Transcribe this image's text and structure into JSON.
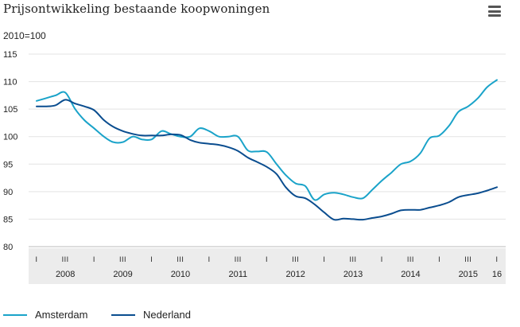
{
  "header": {
    "title": "Prijsontwikkeling bestaande koopwoningen",
    "menu_icon": "hamburger-menu-icon"
  },
  "chart_data": {
    "type": "line",
    "title": "Prijsontwikkeling bestaande koopwoningen",
    "ylabel": "2010=100",
    "ylim": [
      80,
      115
    ],
    "yticks": [
      80,
      85,
      90,
      95,
      100,
      105,
      110,
      115
    ],
    "x_range": [
      2008.0,
      2016.0
    ],
    "quarter_ticks": [
      {
        "x": 2008.0,
        "label": "I"
      },
      {
        "x": 2008.5,
        "label": "III"
      },
      {
        "x": 2009.0,
        "label": "I"
      },
      {
        "x": 2009.5,
        "label": "III"
      },
      {
        "x": 2010.0,
        "label": "I"
      },
      {
        "x": 2010.5,
        "label": "III"
      },
      {
        "x": 2011.0,
        "label": "I"
      },
      {
        "x": 2011.5,
        "label": "III"
      },
      {
        "x": 2012.0,
        "label": "I"
      },
      {
        "x": 2012.5,
        "label": "III"
      },
      {
        "x": 2013.0,
        "label": "I"
      },
      {
        "x": 2013.5,
        "label": "III"
      },
      {
        "x": 2014.0,
        "label": "I"
      },
      {
        "x": 2014.5,
        "label": "III"
      },
      {
        "x": 2015.0,
        "label": "I"
      },
      {
        "x": 2015.5,
        "label": "III"
      },
      {
        "x": 2016.0,
        "label": "I"
      }
    ],
    "year_labels": [
      {
        "x": 2008.5,
        "label": "2008"
      },
      {
        "x": 2009.5,
        "label": "2009"
      },
      {
        "x": 2010.5,
        "label": "2010"
      },
      {
        "x": 2011.5,
        "label": "2011"
      },
      {
        "x": 2012.5,
        "label": "2012"
      },
      {
        "x": 2013.5,
        "label": "2013"
      },
      {
        "x": 2014.5,
        "label": "2014"
      },
      {
        "x": 2015.5,
        "label": "2015"
      },
      {
        "x": 2016.0,
        "label": "16"
      }
    ],
    "grid": true,
    "legend_position": "bottom-left",
    "series": [
      {
        "name": "Amsterdam",
        "color": "#1aa3c9",
        "points": [
          [
            2008.0,
            106.5
          ],
          [
            2008.17,
            107.0
          ],
          [
            2008.33,
            107.5
          ],
          [
            2008.5,
            108.0
          ],
          [
            2008.67,
            105.0
          ],
          [
            2008.83,
            103.0
          ],
          [
            2009.0,
            101.5
          ],
          [
            2009.17,
            100.0
          ],
          [
            2009.33,
            99.0
          ],
          [
            2009.5,
            99.0
          ],
          [
            2009.67,
            100.0
          ],
          [
            2009.83,
            99.5
          ],
          [
            2010.0,
            99.5
          ],
          [
            2010.17,
            101.0
          ],
          [
            2010.33,
            100.5
          ],
          [
            2010.5,
            100.0
          ],
          [
            2010.67,
            100.0
          ],
          [
            2010.83,
            101.5
          ],
          [
            2011.0,
            101.0
          ],
          [
            2011.17,
            100.0
          ],
          [
            2011.33,
            100.0
          ],
          [
            2011.5,
            100.0
          ],
          [
            2011.67,
            97.5
          ],
          [
            2011.83,
            97.3
          ],
          [
            2012.0,
            97.2
          ],
          [
            2012.17,
            95.0
          ],
          [
            2012.33,
            93.0
          ],
          [
            2012.5,
            91.5
          ],
          [
            2012.67,
            91.0
          ],
          [
            2012.83,
            88.5
          ],
          [
            2013.0,
            89.5
          ],
          [
            2013.17,
            89.8
          ],
          [
            2013.33,
            89.5
          ],
          [
            2013.5,
            89.0
          ],
          [
            2013.67,
            88.8
          ],
          [
            2013.83,
            90.3
          ],
          [
            2014.0,
            92.0
          ],
          [
            2014.17,
            93.5
          ],
          [
            2014.33,
            95.0
          ],
          [
            2014.5,
            95.5
          ],
          [
            2014.67,
            97.0
          ],
          [
            2014.83,
            99.7
          ],
          [
            2015.0,
            100.2
          ],
          [
            2015.17,
            102.0
          ],
          [
            2015.33,
            104.5
          ],
          [
            2015.5,
            105.5
          ],
          [
            2015.67,
            107.0
          ],
          [
            2015.83,
            109.0
          ],
          [
            2016.0,
            110.3
          ]
        ]
      },
      {
        "name": "Nederland",
        "color": "#0a4d8f",
        "points": [
          [
            2008.0,
            105.5
          ],
          [
            2008.17,
            105.5
          ],
          [
            2008.33,
            105.7
          ],
          [
            2008.5,
            106.7
          ],
          [
            2008.67,
            106.0
          ],
          [
            2008.83,
            105.5
          ],
          [
            2009.0,
            104.8
          ],
          [
            2009.17,
            103.0
          ],
          [
            2009.33,
            101.8
          ],
          [
            2009.5,
            101.0
          ],
          [
            2009.67,
            100.5
          ],
          [
            2009.83,
            100.2
          ],
          [
            2010.0,
            100.2
          ],
          [
            2010.17,
            100.2
          ],
          [
            2010.33,
            100.4
          ],
          [
            2010.5,
            100.3
          ],
          [
            2010.67,
            99.4
          ],
          [
            2010.83,
            98.9
          ],
          [
            2011.0,
            98.7
          ],
          [
            2011.17,
            98.5
          ],
          [
            2011.33,
            98.1
          ],
          [
            2011.5,
            97.4
          ],
          [
            2011.67,
            96.2
          ],
          [
            2011.83,
            95.4
          ],
          [
            2012.0,
            94.5
          ],
          [
            2012.17,
            93.2
          ],
          [
            2012.33,
            90.8
          ],
          [
            2012.5,
            89.2
          ],
          [
            2012.67,
            88.8
          ],
          [
            2012.83,
            87.7
          ],
          [
            2013.0,
            86.2
          ],
          [
            2013.17,
            84.9
          ],
          [
            2013.33,
            85.1
          ],
          [
            2013.5,
            85.0
          ],
          [
            2013.67,
            84.9
          ],
          [
            2013.83,
            85.2
          ],
          [
            2014.0,
            85.5
          ],
          [
            2014.17,
            86.0
          ],
          [
            2014.33,
            86.6
          ],
          [
            2014.5,
            86.7
          ],
          [
            2014.67,
            86.7
          ],
          [
            2014.83,
            87.1
          ],
          [
            2015.0,
            87.5
          ],
          [
            2015.17,
            88.1
          ],
          [
            2015.33,
            89.0
          ],
          [
            2015.5,
            89.4
          ],
          [
            2015.67,
            89.7
          ],
          [
            2015.83,
            90.2
          ],
          [
            2016.0,
            90.8
          ]
        ]
      }
    ]
  }
}
